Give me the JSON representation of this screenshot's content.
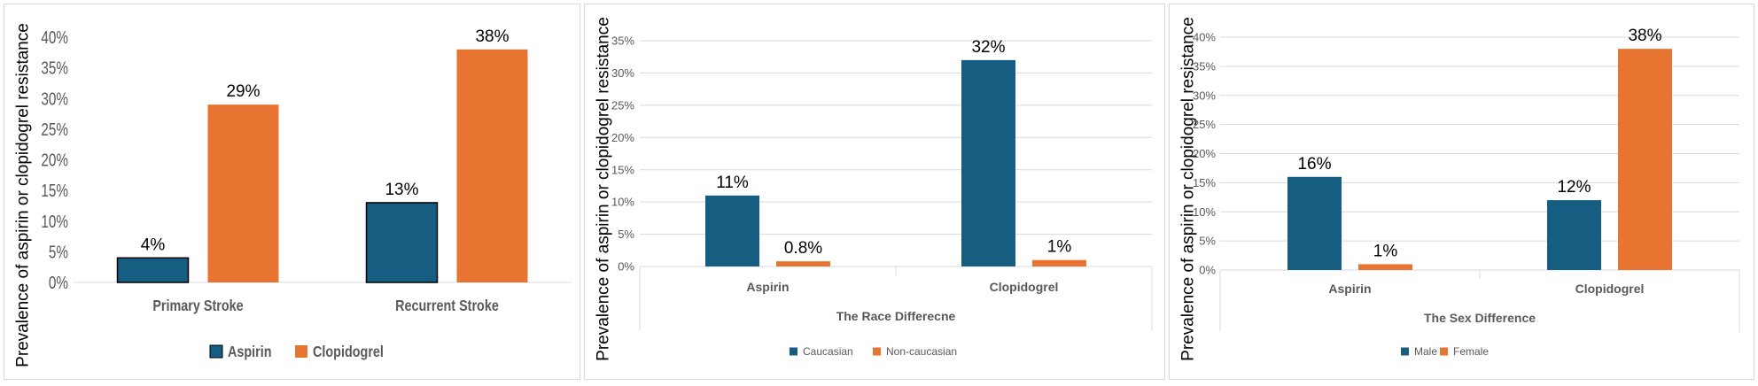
{
  "chart_data": [
    {
      "type": "bar",
      "ylabel": "Prevalence of aspirin or clopidogrel resistance",
      "xlabel": "",
      "categories": [
        "Primary Stroke",
        "Recurrent Stroke"
      ],
      "series": [
        {
          "name": "Aspirin",
          "values": [
            4,
            13
          ],
          "labels": [
            "4%",
            "13%"
          ],
          "color": "#155e82"
        },
        {
          "name": "Clopidogrel",
          "values": [
            29,
            38
          ],
          "labels": [
            "29%",
            "38%"
          ],
          "color": "#e87432"
        }
      ],
      "ylim": [
        0,
        40
      ],
      "yticks": [
        "0%",
        "5%",
        "10%",
        "15%",
        "20%",
        "25%",
        "30%",
        "35%",
        "40%"
      ],
      "legend": "bottom",
      "grid": false
    },
    {
      "type": "bar",
      "ylabel": "Prevalence of aspirin or clopidogrel resistance",
      "xlabel": "The Race Differecne",
      "categories": [
        "Aspirin",
        "Clopidogrel"
      ],
      "series": [
        {
          "name": "Caucasian",
          "values": [
            11,
            32
          ],
          "labels": [
            "11%",
            "32%"
          ],
          "color": "#155e82"
        },
        {
          "name": "Non-caucasian",
          "values": [
            0.8,
            1
          ],
          "labels": [
            "0.8%",
            "1%"
          ],
          "color": "#e87432"
        }
      ],
      "ylim": [
        0,
        35
      ],
      "yticks": [
        "0%",
        "5%",
        "10%",
        "15%",
        "20%",
        "25%",
        "30%",
        "35%"
      ],
      "legend": "bottom",
      "grid": true
    },
    {
      "type": "bar",
      "ylabel": "Prevalence of aspirin or clopidogrel resistance",
      "xlabel": "The Sex Difference",
      "categories": [
        "Aspirin",
        "Clopidogrel"
      ],
      "series": [
        {
          "name": "Male",
          "values": [
            16,
            12
          ],
          "labels": [
            "16%",
            "12%"
          ],
          "color": "#155e82"
        },
        {
          "name": "Female",
          "values": [
            1,
            38
          ],
          "labels": [
            "1%",
            "38%"
          ],
          "color": "#e87432"
        }
      ],
      "ylim": [
        0,
        40
      ],
      "yticks": [
        "0%",
        "5%",
        "10%",
        "15%",
        "20%",
        "25%",
        "30%",
        "35%",
        "40%"
      ],
      "legend": "bottom",
      "grid": true
    }
  ]
}
